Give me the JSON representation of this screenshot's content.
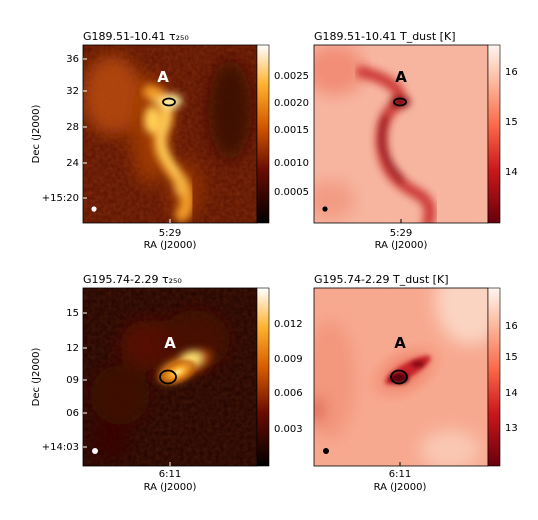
{
  "panels": [
    {
      "title": "G189.51-10.41 τ₂₅₀",
      "colormap": "afmhot",
      "label": "A",
      "x_tick": "5:29",
      "x_label": "RA (J2000)",
      "y_label": "Dec (J2000)",
      "y_ticks": [
        "36",
        "32",
        "28",
        "24",
        "+15:20"
      ],
      "colorbar_ticks": [
        "0.0025",
        "0.0020",
        "0.0015",
        "0.0010",
        "0.0005"
      ]
    },
    {
      "title": "G189.51-10.41 T_dust [K]",
      "colormap": "reds",
      "label": "A",
      "x_tick": "5:29",
      "x_label": "RA (J2000)",
      "colorbar_ticks": [
        "16",
        "15",
        "14"
      ]
    },
    {
      "title": "G195.74-2.29 τ₂₅₀",
      "colormap": "afmhot",
      "label": "A",
      "x_tick": "6:11",
      "x_label": "RA (J2000)",
      "y_label": "Dec (J2000)",
      "y_ticks": [
        "15",
        "12",
        "09",
        "06",
        "+14:03"
      ],
      "colorbar_ticks": [
        "0.012",
        "0.009",
        "0.006",
        "0.003"
      ]
    },
    {
      "title": "G195.74-2.29 T_dust [K]",
      "colormap": "reds",
      "label": "A",
      "x_tick": "6:11",
      "x_label": "RA (J2000)",
      "colorbar_ticks": [
        "16",
        "15",
        "14",
        "13"
      ]
    }
  ],
  "colors": {
    "afmhot_dark": "#2a0400",
    "afmhot_mid": "#b84a00",
    "afmhot_bright": "#ffe97a",
    "reds_light": "#fff2ea",
    "reds_mid": "#ef6a4e",
    "reds_dark": "#6e0010"
  }
}
